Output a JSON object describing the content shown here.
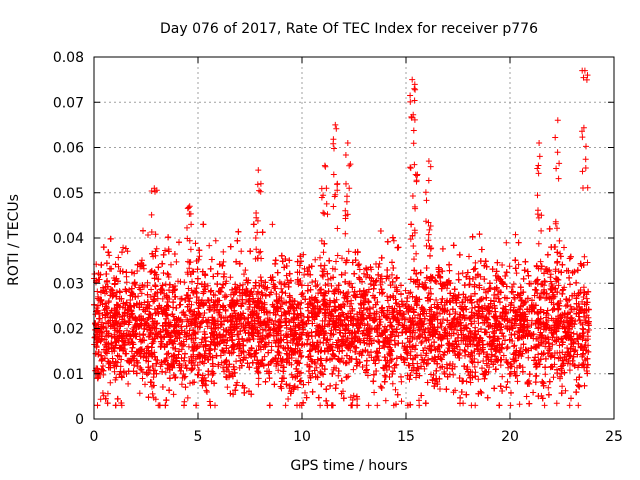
{
  "chart_data": {
    "type": "scatter",
    "title": "Day 076 of 2017, Rate Of TEC Index for receiver p776",
    "xlabel": "GPS time / hours",
    "ylabel": "ROTI / TECUs",
    "xlim": [
      0,
      25
    ],
    "ylim": [
      0,
      0.08
    ],
    "xticks": [
      0,
      5,
      10,
      15,
      20,
      25
    ],
    "xtick_labels": [
      "0",
      "5",
      "10",
      "15",
      "20",
      "25"
    ],
    "yticks": [
      0,
      0.01,
      0.02,
      0.03,
      0.04,
      0.05,
      0.06,
      0.07,
      0.08
    ],
    "ytick_labels": [
      "0",
      "0.01",
      "0.02",
      "0.03",
      "0.04",
      "0.05",
      "0.06",
      "0.07",
      "0.08"
    ],
    "grid": true,
    "marker": "+",
    "color": "#ff0000",
    "series": [
      {
        "name": "ROTI",
        "x_range": [
          0.0,
          23.8
        ],
        "typical_range": [
          0.005,
          0.035
        ],
        "peaks": [
          {
            "x": 2.9,
            "y": 0.051
          },
          {
            "x": 4.6,
            "y": 0.047
          },
          {
            "x": 7.9,
            "y": 0.055
          },
          {
            "x": 11.1,
            "y": 0.056
          },
          {
            "x": 11.6,
            "y": 0.065
          },
          {
            "x": 12.2,
            "y": 0.061
          },
          {
            "x": 15.3,
            "y": 0.075
          },
          {
            "x": 15.4,
            "y": 0.073
          },
          {
            "x": 16.1,
            "y": 0.057
          },
          {
            "x": 21.4,
            "y": 0.061
          },
          {
            "x": 22.3,
            "y": 0.066
          },
          {
            "x": 23.6,
            "y": 0.077
          }
        ]
      }
    ]
  }
}
